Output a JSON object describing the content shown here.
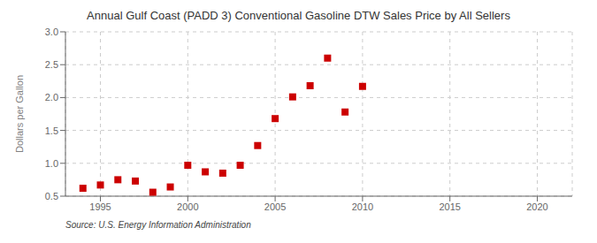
{
  "chart_data": {
    "type": "scatter",
    "title": "Annual Gulf Coast (PADD 3) Conventional Gasoline DTW Sales Price by All Sellers",
    "ylabel": "Dollars per Gallon",
    "annotation": "Source: U.S. Energy Information Administration",
    "color": "#cc0000",
    "marker": "square",
    "grid": true,
    "xlim": [
      1993,
      2022
    ],
    "ylim": [
      0.5,
      3.0
    ],
    "xticks": [
      1995,
      2000,
      2005,
      2010,
      2015,
      2020
    ],
    "yticks": [
      0.5,
      {
        "value": 1,
        "label": "1.0"
      },
      1.5,
      {
        "value": 2,
        "label": "2.0"
      },
      2.5,
      {
        "value": 3,
        "label": "3.0"
      }
    ],
    "x": [
      1994,
      1995,
      1996,
      1997,
      1998,
      1999,
      2000,
      2001,
      2002,
      2003,
      2004,
      2005,
      2006,
      2007,
      2008,
      2009,
      2010
    ],
    "values": [
      0.62,
      0.67,
      0.75,
      0.73,
      0.56,
      0.64,
      0.97,
      0.87,
      0.85,
      0.97,
      1.27,
      1.68,
      2.01,
      2.18,
      2.6,
      1.78,
      2.17
    ]
  }
}
